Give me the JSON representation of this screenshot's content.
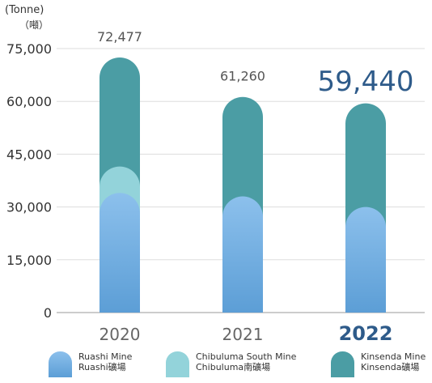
{
  "chart_data": {
    "type": "bar",
    "stacked": true,
    "unit_en": "(Tonne)",
    "unit_zh": "（噸）",
    "categories": [
      "2020",
      "2021",
      "2022"
    ],
    "highlight_category": "2022",
    "totals": [
      "72,477",
      "61,260",
      "59,440"
    ],
    "y_ticks": [
      "0",
      "15,000",
      "30,000",
      "45,000",
      "60,000",
      "75,000"
    ],
    "ylim": [
      0,
      75000
    ],
    "grid": true,
    "legend_position": "bottom",
    "series": [
      {
        "name": "Ruashi Mine",
        "name_zh": "Ruashi礦場",
        "color": "#6aaae0",
        "values": [
          34000,
          33000,
          30000
        ]
      },
      {
        "name": "Chibuluma South Mine",
        "name_zh": "Chibuluma南礦場",
        "color": "#93d3da",
        "values": [
          7500,
          0,
          0
        ]
      },
      {
        "name": "Kinsenda Mine",
        "name_zh": "Kinsenda礦場",
        "color": "#4b9da4",
        "values": [
          30977,
          28260,
          29440
        ]
      }
    ]
  }
}
